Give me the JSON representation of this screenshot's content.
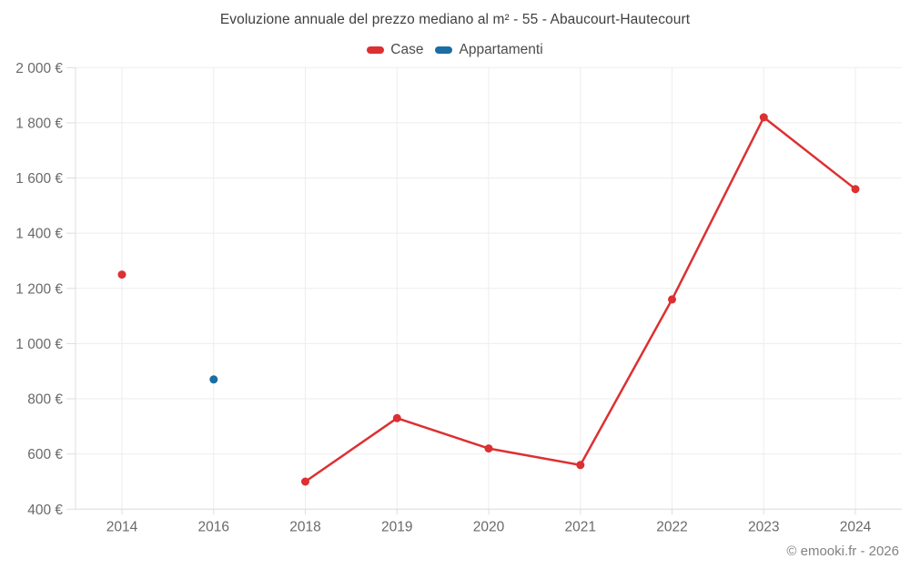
{
  "page": {
    "footer": "© emooki.fr - 2026"
  },
  "chart_data": {
    "type": "line",
    "title": "Evoluzione annuale del prezzo mediano al m² - 55 - Abaucourt-Hautecourt",
    "categories": [
      "2014",
      "2016",
      "2018",
      "2019",
      "2020",
      "2021",
      "2022",
      "2023",
      "2024"
    ],
    "series": [
      {
        "name": "Case",
        "color": "#dc3032",
        "values": [
          1250,
          null,
          500,
          730,
          620,
          560,
          1160,
          1820,
          1560
        ]
      },
      {
        "name": "Appartamenti",
        "color": "#1a6ea4",
        "values": [
          null,
          870,
          null,
          null,
          null,
          null,
          null,
          null,
          null
        ]
      }
    ],
    "xlabel": "",
    "ylabel": "",
    "ylim": [
      400,
      2000
    ],
    "yticks": [
      400,
      600,
      800,
      1000,
      1200,
      1400,
      1600,
      1800,
      2000
    ],
    "ytick_labels": [
      "400 €",
      "600 €",
      "800 €",
      "1 000 €",
      "1 200 €",
      "1 400 €",
      "1 600 €",
      "1 800 €",
      "2 000 €"
    ],
    "grid": true,
    "legend_position": "top",
    "note": "Case has an isolated point in 2014 (no line to 2018); Appartamenti has a single point in 2016."
  }
}
